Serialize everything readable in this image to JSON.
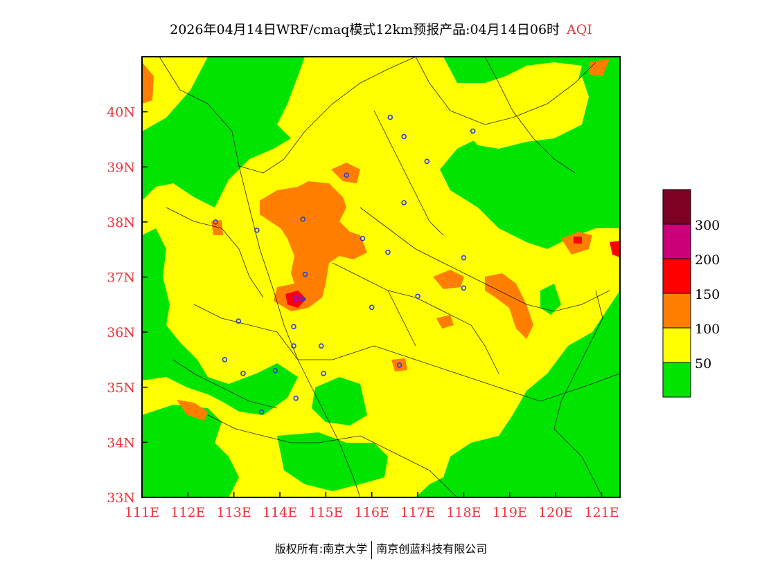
{
  "title": {
    "main": "2026年04月14日WRF/cmaq模式12km预报产品:04月14日06时",
    "pollutant": "AQI"
  },
  "copyright": {
    "owner": "版权所有:南京大学",
    "partner": "南京创蓝科技有限公司"
  },
  "map": {
    "lon_labels": [
      "111E",
      "112E",
      "113E",
      "114E",
      "115E",
      "116E",
      "117E",
      "118E",
      "119E",
      "120E",
      "121E"
    ],
    "lat_labels": [
      "33N",
      "34N",
      "35N",
      "36N",
      "37N",
      "38N",
      "39N",
      "40N"
    ],
    "lon_range": [
      111,
      121.4
    ],
    "lat_range": [
      33,
      41
    ]
  },
  "legend": {
    "thresholds": [
      "50",
      "100",
      "150",
      "200",
      "300"
    ],
    "colors": [
      "#00e400",
      "#ffff00",
      "#ff7e00",
      "#ff0000",
      "#cc0078",
      "#7e0023"
    ]
  },
  "stations": [
    {
      "lon": 112.6,
      "lat": 38.0
    },
    {
      "lon": 113.5,
      "lat": 37.85
    },
    {
      "lon": 114.5,
      "lat": 38.05
    },
    {
      "lon": 115.45,
      "lat": 38.85
    },
    {
      "lon": 115.8,
      "lat": 37.7
    },
    {
      "lon": 116.35,
      "lat": 37.45
    },
    {
      "lon": 114.55,
      "lat": 37.05
    },
    {
      "lon": 114.5,
      "lat": 36.6
    },
    {
      "lon": 114.3,
      "lat": 36.1
    },
    {
      "lon": 113.1,
      "lat": 36.2
    },
    {
      "lon": 112.8,
      "lat": 35.5
    },
    {
      "lon": 113.2,
      "lat": 35.25
    },
    {
      "lon": 113.9,
      "lat": 35.3
    },
    {
      "lon": 114.3,
      "lat": 35.75
    },
    {
      "lon": 114.9,
      "lat": 35.75
    },
    {
      "lon": 114.95,
      "lat": 35.25
    },
    {
      "lon": 114.35,
      "lat": 34.8
    },
    {
      "lon": 113.6,
      "lat": 34.55
    },
    {
      "lon": 116.6,
      "lat": 35.4
    },
    {
      "lon": 116.0,
      "lat": 36.45
    },
    {
      "lon": 117.0,
      "lat": 36.65
    },
    {
      "lon": 118.0,
      "lat": 36.8
    },
    {
      "lon": 118.0,
      "lat": 37.35
    },
    {
      "lon": 116.7,
      "lat": 38.35
    },
    {
      "lon": 117.2,
      "lat": 39.1
    },
    {
      "lon": 116.4,
      "lat": 39.9
    },
    {
      "lon": 116.7,
      "lat": 39.55
    },
    {
      "lon": 118.2,
      "lat": 39.65
    }
  ]
}
